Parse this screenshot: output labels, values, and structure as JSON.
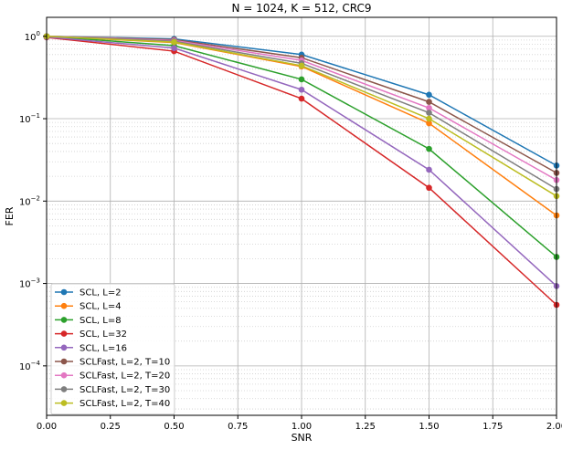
{
  "chart_data": {
    "type": "line",
    "title": "N = 1024, K = 512, CRC9",
    "xlabel": "SNR",
    "ylabel": "FER",
    "xlim": [
      0.0,
      2.0
    ],
    "ylim_log10": [
      -4.6,
      0.23
    ],
    "yscale": "log",
    "grid": "major and minor, dotted",
    "legend_placement": "lower-left",
    "x": [
      0.0,
      0.5,
      1.0,
      1.5,
      2.0
    ],
    "x_ticks": [
      "0.00",
      "0.25",
      "0.50",
      "0.75",
      "1.00",
      "1.25",
      "1.50",
      "1.75",
      "2.00"
    ],
    "y_ticks": [
      {
        "base": "10",
        "exp": "0",
        "value": 1
      },
      {
        "base": "10",
        "exp": "−1",
        "value": 0.1
      },
      {
        "base": "10",
        "exp": "−2",
        "value": 0.01
      },
      {
        "base": "10",
        "exp": "−3",
        "value": 0.001
      },
      {
        "base": "10",
        "exp": "−4",
        "value": 0.0001
      }
    ],
    "series": [
      {
        "name": "SCL, L=2",
        "color": "#1f77b4",
        "values": [
          1.0,
          0.93,
          0.6,
          0.195,
          0.027
        ]
      },
      {
        "name": "SCL, L=4",
        "color": "#ff7f0e",
        "values": [
          1.0,
          0.84,
          0.43,
          0.088,
          0.0067
        ]
      },
      {
        "name": "SCL, L=8",
        "color": "#2ca02c",
        "values": [
          1.0,
          0.77,
          0.3,
          0.043,
          0.0021
        ]
      },
      {
        "name": "SCL, L=32",
        "color": "#d62728",
        "values": [
          0.97,
          0.66,
          0.175,
          0.0145,
          0.00055
        ]
      },
      {
        "name": "SCL, L=16",
        "color": "#9467bd",
        "values": [
          0.98,
          0.72,
          0.225,
          0.024,
          0.00093
        ]
      },
      {
        "name": "SCLFast, L=2, T=10",
        "color": "#8c564b",
        "values": [
          1.0,
          0.91,
          0.55,
          0.16,
          0.022
        ]
      },
      {
        "name": "SCLFast, L=2, T=20",
        "color": "#e377c2",
        "values": [
          1.0,
          0.89,
          0.51,
          0.135,
          0.018
        ]
      },
      {
        "name": "SCLFast, L=2, T=30",
        "color": "#7f7f7f",
        "values": [
          1.0,
          0.87,
          0.47,
          0.118,
          0.014
        ]
      },
      {
        "name": "SCLFast, L=2, T=40",
        "color": "#bcbd22",
        "values": [
          1.0,
          0.85,
          0.44,
          0.1,
          0.0115
        ]
      }
    ]
  }
}
